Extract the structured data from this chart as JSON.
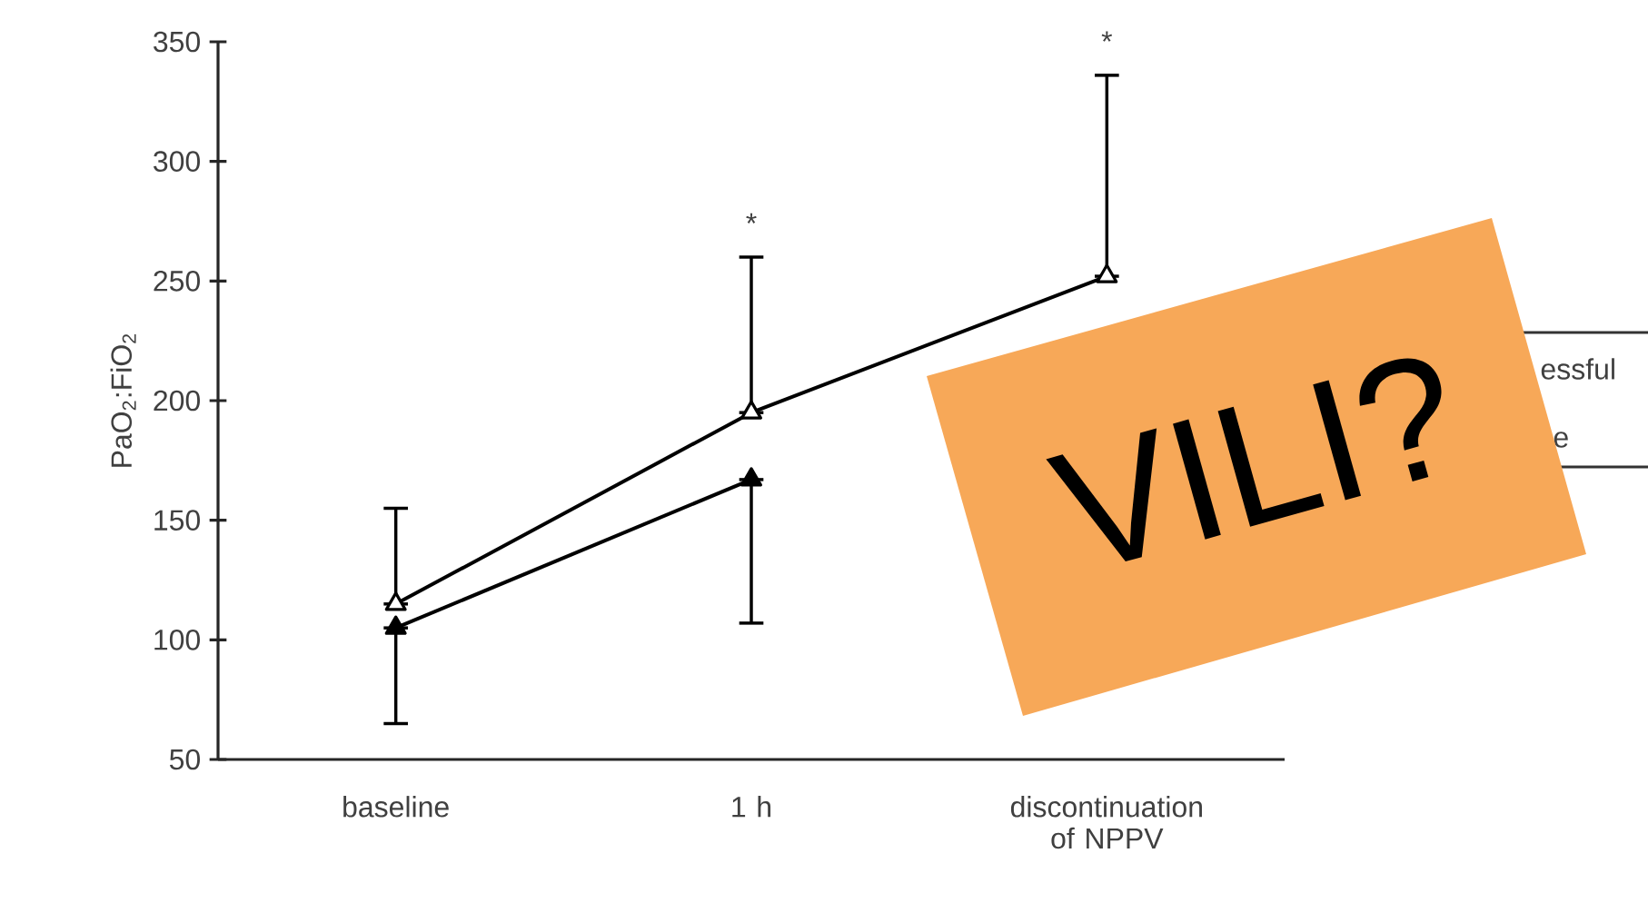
{
  "chart_data": {
    "type": "line",
    "ylabel": "PaO$_{2}$:FiO$_{2}$",
    "categories": [
      "baseline",
      "1 h",
      "discontinuation of NPPV"
    ],
    "series": [
      {
        "color": "#000000",
        "values": [
          115,
          195,
          252
        ],
        "errors": [
          [
            115,
            155
          ],
          [
            195,
            260
          ],
          [
            252,
            336
          ]
        ]
      },
      {
        "color": "#000000",
        "values": [
          105,
          167,
          null
        ],
        "errors": [
          [
            65,
            105
          ],
          [
            107,
            167
          ],
          null
        ]
      }
    ],
    "ylim": [
      50,
      350
    ],
    "yticks": [
      50,
      100,
      150,
      200,
      250,
      300,
      350
    ],
    "marker": "triangle",
    "line_style": "solid",
    "annotations": [
      "*",
      "*",
      "essful",
      "e",
      "VILI?"
    ]
  }
}
